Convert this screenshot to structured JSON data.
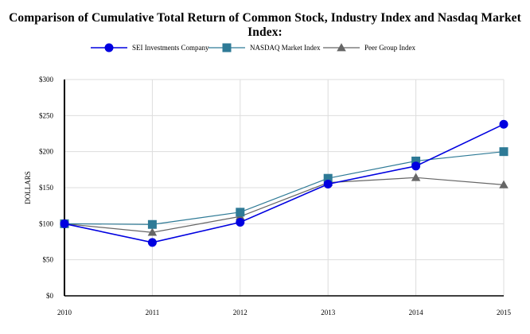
{
  "chart_data": {
    "type": "line",
    "title": "Comparison of Cumulative Total Return of Common Stock, Industry Index and Nasdaq Market Index:",
    "xlabel": "",
    "ylabel": "DOLLARS",
    "x": [
      "2010",
      "2011",
      "2012",
      "2013",
      "2014",
      "2015"
    ],
    "ylim": [
      0,
      300
    ],
    "yticks": [
      0,
      50,
      100,
      150,
      200,
      250,
      300
    ],
    "ytick_labels": [
      "$0",
      "$50",
      "$100",
      "$150",
      "$200",
      "$250",
      "$300"
    ],
    "grid": true,
    "legend_position": "top",
    "series": [
      {
        "name": "SEI Investments Company",
        "marker": "circle",
        "color": "#0000e0",
        "values": [
          100,
          74,
          102,
          155,
          180,
          238
        ]
      },
      {
        "name": "NASDAQ Market Index",
        "marker": "square",
        "color": "#2e7a96",
        "values": [
          100,
          99,
          116,
          163,
          187,
          200
        ]
      },
      {
        "name": "Peer Group Index",
        "marker": "triangle",
        "color": "#666666",
        "values": [
          100,
          88,
          110,
          157,
          164,
          154
        ]
      }
    ]
  }
}
